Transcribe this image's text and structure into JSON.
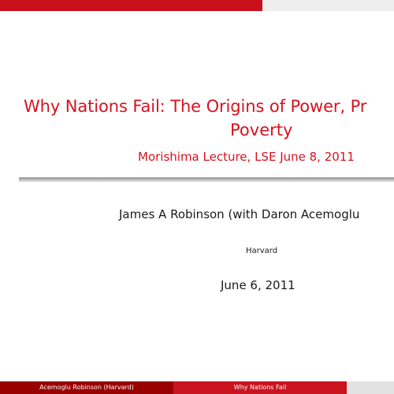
{
  "title": {
    "line1": "Why Nations Fail: The Origins of Power, Pr",
    "line2": "Poverty",
    "subtitle": "Morishima Lecture, LSE June 8, 2011"
  },
  "author": "James A Robinson (with Daron Acemoglu",
  "institute": "Harvard",
  "date": "June 6, 2011",
  "footer": {
    "authors": "Acemoglu Robinson  (Harvard)",
    "short_title": "Why Nations Fail"
  },
  "colors": {
    "accent": "#d8121f",
    "footer_dark": "#990000",
    "footer_mid": "#c91420"
  }
}
